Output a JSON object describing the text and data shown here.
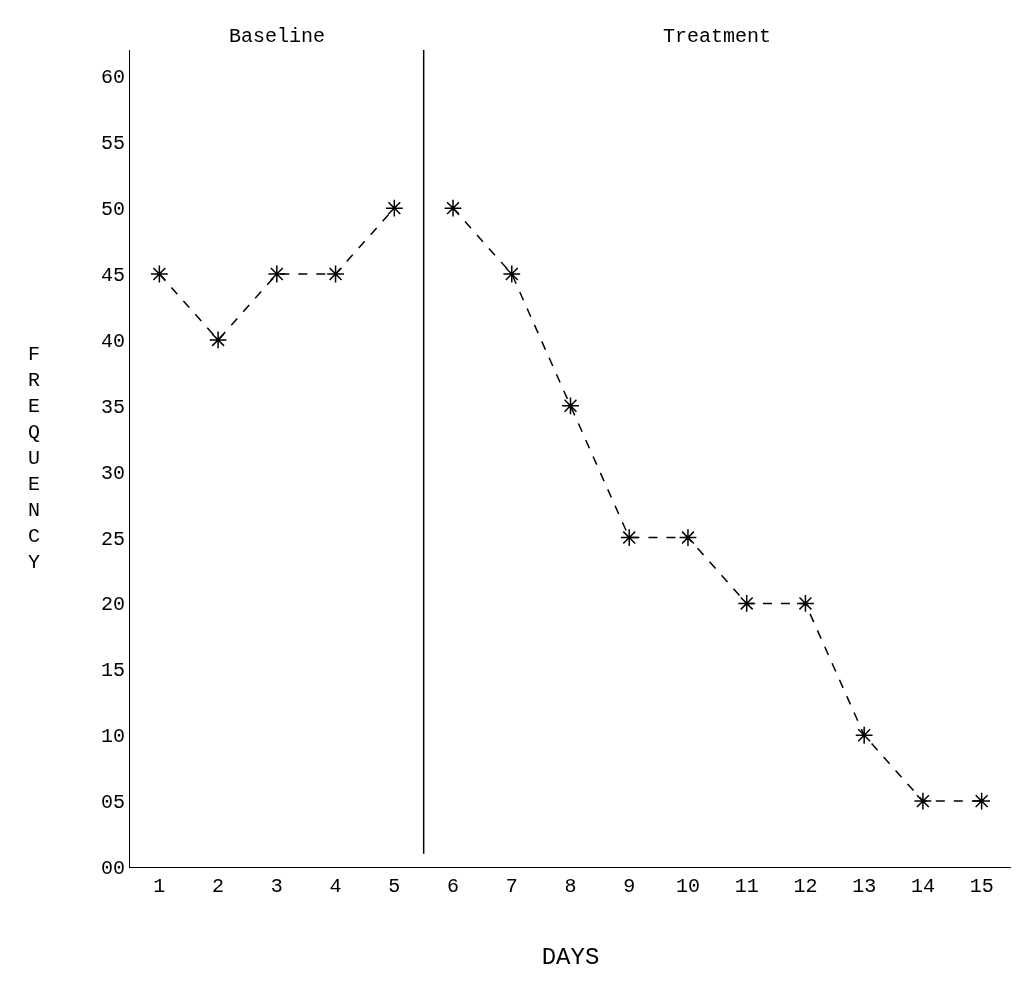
{
  "chart_data": {
    "type": "line",
    "xlabel": "DAYS",
    "ylabel": "FREQUENCY",
    "series": [
      {
        "color": "#000000",
        "x": [
          1,
          2,
          3,
          4,
          5
        ],
        "values": [
          45,
          40,
          45,
          45,
          50
        ]
      },
      {
        "color": "#000000",
        "x": [
          6,
          7,
          8,
          9,
          10,
          11,
          12,
          13,
          14,
          15
        ],
        "values": [
          50,
          45,
          35,
          25,
          25,
          20,
          20,
          10,
          5,
          5
        ]
      }
    ],
    "xlim": [
      0.5,
      15.5
    ],
    "xticks": [
      1,
      2,
      3,
      4,
      5,
      6,
      7,
      8,
      9,
      10,
      11,
      12,
      13,
      14,
      15
    ],
    "ylim": [
      0,
      62
    ],
    "yticks": [
      {
        "value": 0,
        "label": "00"
      },
      {
        "value": 5,
        "label": "05"
      },
      10,
      15,
      20,
      25,
      30,
      35,
      40,
      45,
      50,
      55,
      60
    ],
    "ref_lines": [
      {
        "axis": "x",
        "value": 5.5,
        "color": "#000000"
      }
    ],
    "annotations": [
      "Baseline",
      "Treatment"
    ],
    "marker": "cross",
    "line_style": "dashed",
    "grid": false
  }
}
